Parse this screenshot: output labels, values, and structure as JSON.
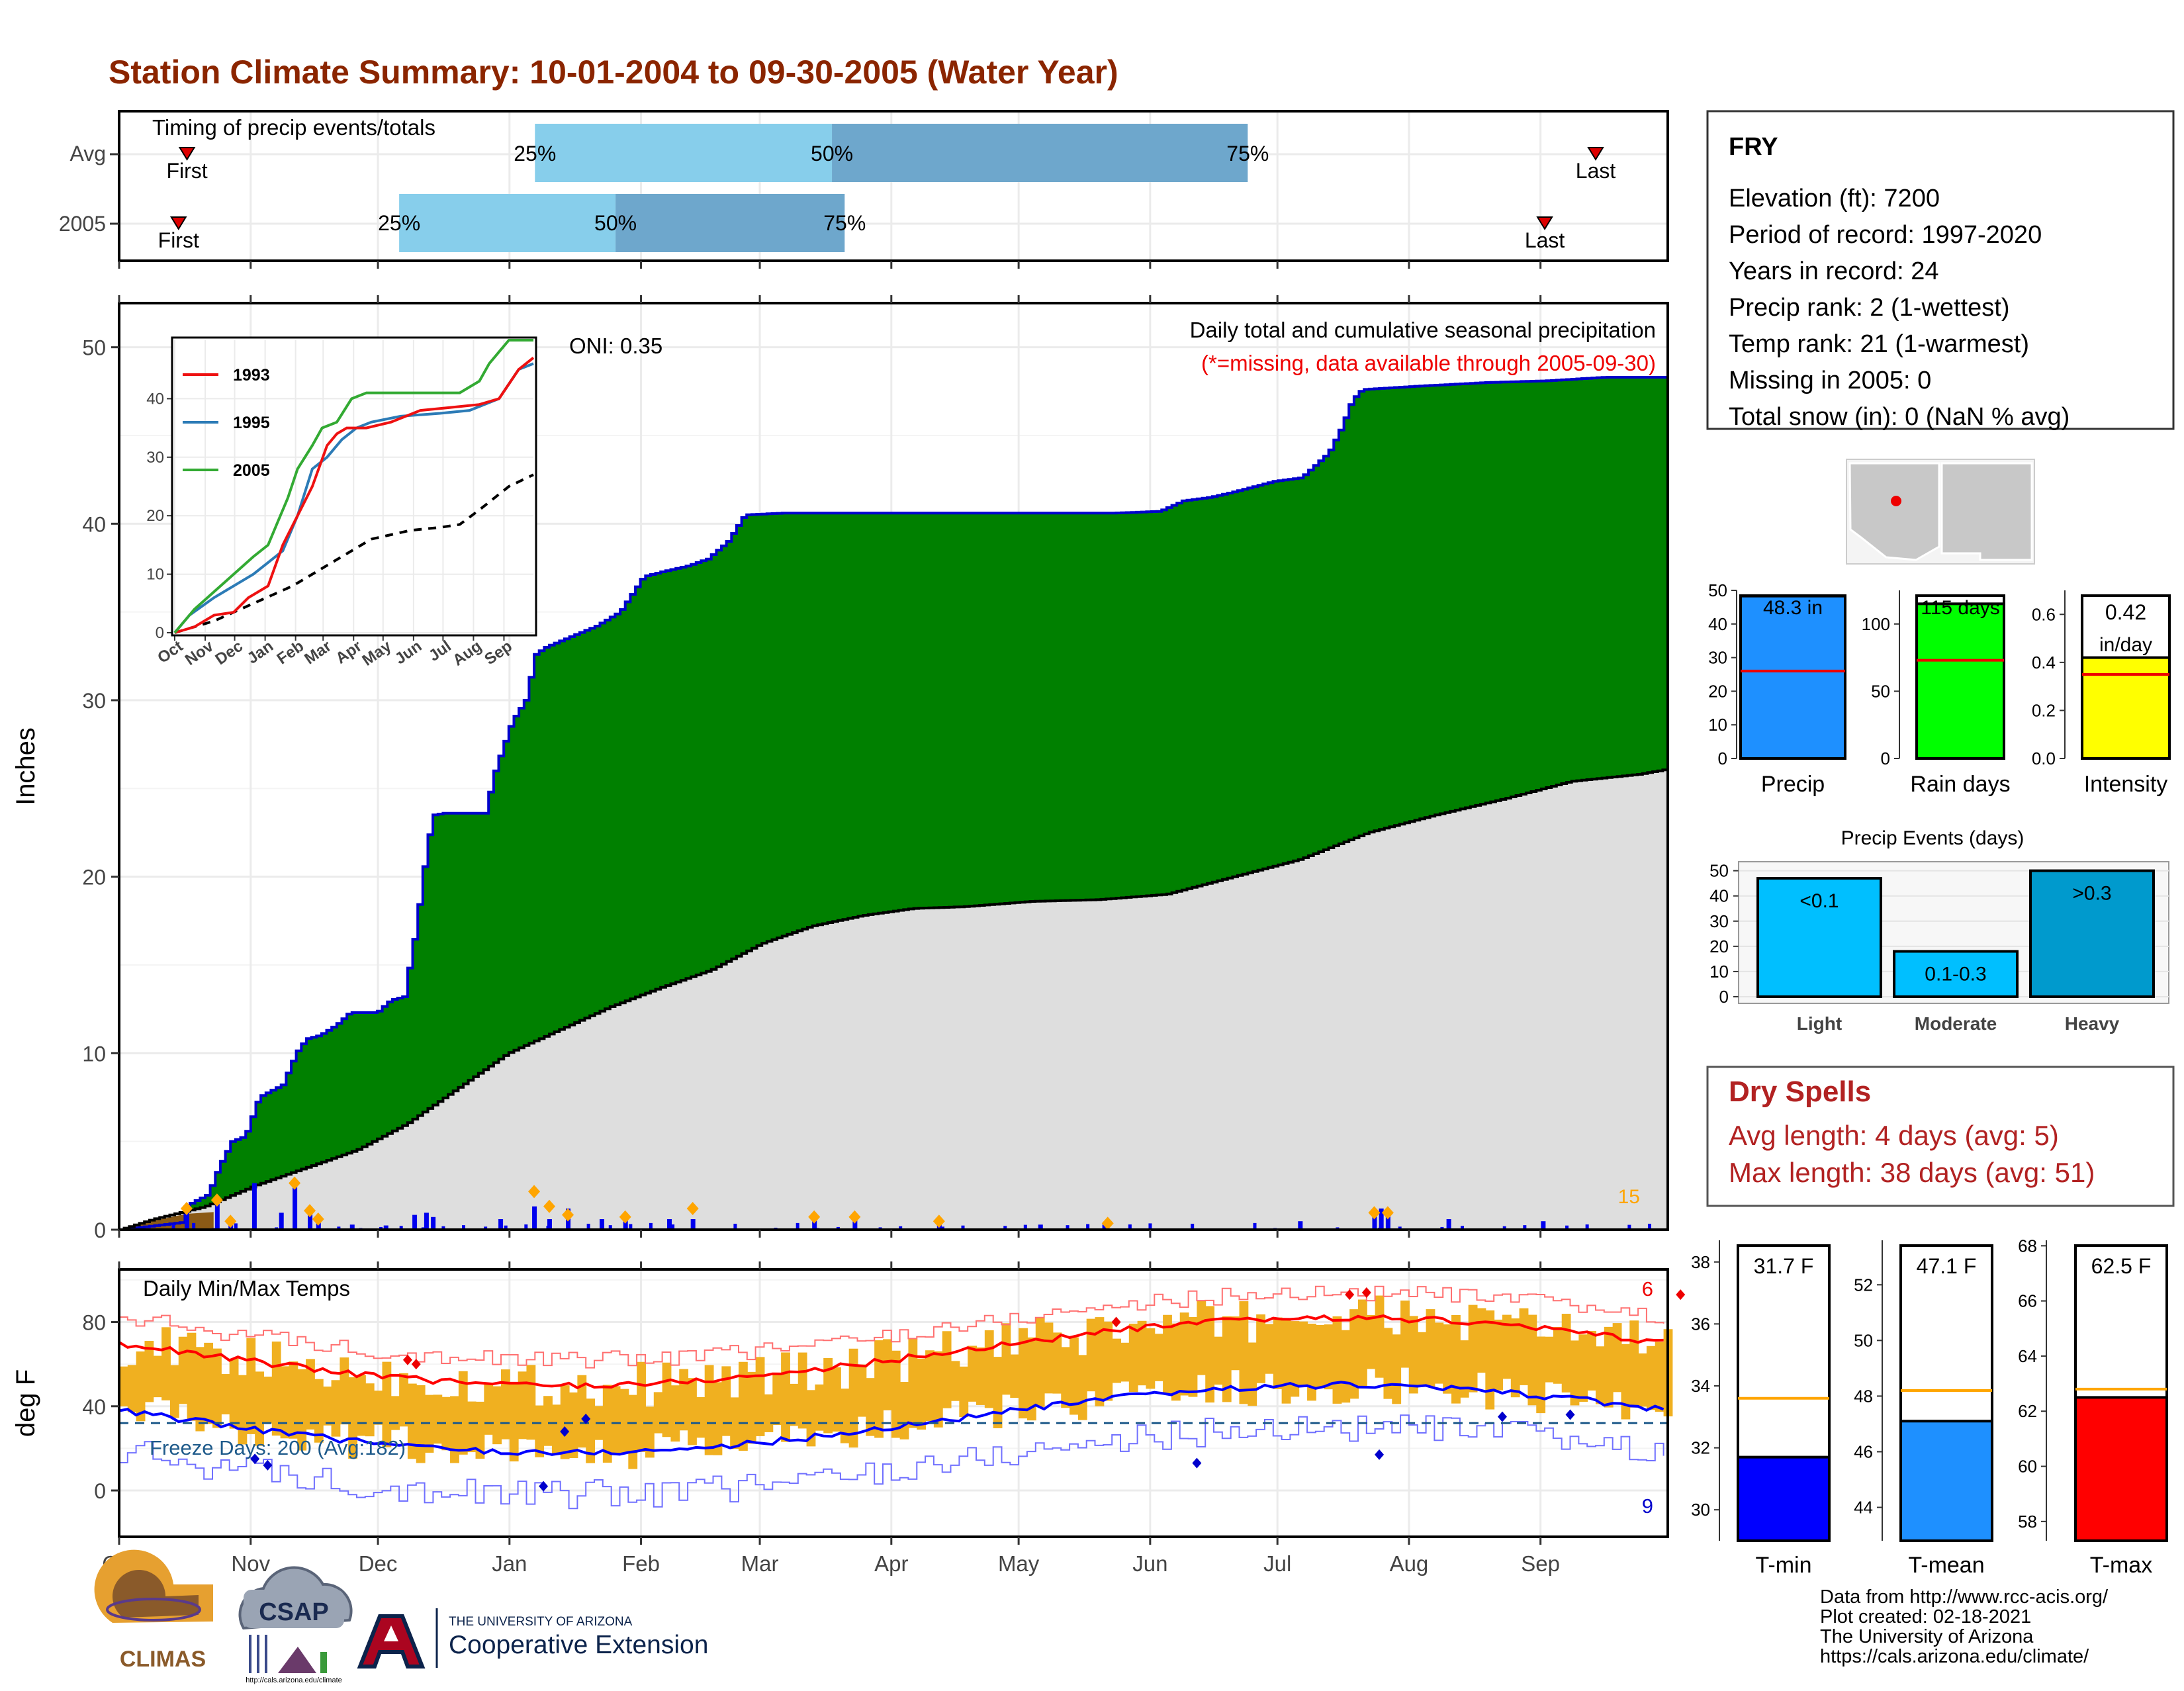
{
  "title": "Station Climate Summary: 10-01-2004 to 09-30-2005 (Water Year)",
  "months": [
    "Oct",
    "Nov",
    "Dec",
    "Jan",
    "Feb",
    "Mar",
    "Apr",
    "May",
    "Jun",
    "Jul",
    "Aug",
    "Sep"
  ],
  "colors": {
    "title": "#8b2500",
    "cum_green": "#008000",
    "cum_line": "#0000cd",
    "norm_gray": "#dedede",
    "daily_bar": "#0000ee",
    "marker": "#ffa500",
    "tmin": "#0000ff",
    "tmean": "#1e90ff",
    "tmax": "#ff0000",
    "band": "#f0b020",
    "light_blue": "#87ceeb",
    "mid_blue": "#6ea7cc",
    "precip_bar": "#1e90ff",
    "rain_bar": "#00ff00",
    "intensity_bar": "#ffff00",
    "events_light": "#00bfff",
    "events_mod": "#00bfff",
    "events_heavy": "#009acd",
    "dry_text": "#b22222"
  },
  "timing": {
    "label": "Timing of precip events/totals",
    "rows": [
      {
        "name": "Avg",
        "first_label": "First",
        "last_label": "Last",
        "first_doy": 16,
        "last_doy": 348,
        "p25": 98,
        "p50": 168,
        "p75": 266,
        "p25_label": "25%",
        "p50_label": "50%",
        "p75_label": "75%"
      },
      {
        "name": "2005",
        "first_label": "First",
        "last_label": "Last",
        "first_doy": 14,
        "last_doy": 336,
        "p25": 66,
        "p50": 117,
        "p75": 171,
        "p25_label": "25%",
        "p50_label": "50%",
        "p75_label": "75%"
      }
    ]
  },
  "precip_panel": {
    "ylabel": "Inches",
    "oni": "ONI: 0.35",
    "subtitle": "Daily total and cumulative seasonal precipitation",
    "missing_note": "(*=missing, data available through 2005-09-30)",
    "marker_count": "15"
  },
  "inset": {
    "months": [
      "Oct",
      "Nov",
      "Dec",
      "Jan",
      "Feb",
      "Mar",
      "Apr",
      "May",
      "Jun",
      "Jul",
      "Aug",
      "Sep"
    ],
    "legend": [
      {
        "name": "1993",
        "color": "#ee1111"
      },
      {
        "name": "1995",
        "color": "#2c7bb6"
      },
      {
        "name": "2005",
        "color": "#33aa33"
      }
    ]
  },
  "temp_panel": {
    "ylabel": "deg F",
    "label": "Daily Min/Max Temps",
    "freeze": "Freeze Days: 200 (Avg:182)",
    "max_count": "6",
    "min_count": "9"
  },
  "station": {
    "name": "FRY",
    "lines": [
      "Elevation (ft): 7200",
      "Period of record: 1997-2020",
      "Years in record: 24",
      "Precip rank: 2 (1-wettest)",
      "Temp rank: 21 (1-warmest)",
      "Missing in 2005: 0",
      "Total snow (in): 0 (NaN % avg)"
    ]
  },
  "summary_bars": [
    {
      "label": "Precip",
      "value_label": "48.3 in",
      "value": 48.3,
      "avg": 26,
      "ymax": 50,
      "ticks": [
        0,
        10,
        20,
        30,
        40,
        50
      ],
      "color": "#1e90ff"
    },
    {
      "label": "Rain days",
      "value_label": "115 days",
      "value": 115,
      "avg": 73,
      "ymax": 125,
      "ticks": [
        0,
        50,
        100
      ],
      "color": "#00ff00"
    },
    {
      "label": "Intensity",
      "value_label": "0.42 in/day",
      "value": 0.42,
      "avg": 0.35,
      "ymax": 0.7,
      "ticks": [
        "0.0",
        "0.2",
        "0.4",
        "0.6"
      ],
      "color": "#ffff00"
    }
  ],
  "events": {
    "title": "Precip Events (days)",
    "categories": [
      "Light",
      "Moderate",
      "Heavy"
    ],
    "bar_labels": [
      "<0.1",
      "0.1-0.3",
      ">0.3"
    ],
    "values": [
      47,
      18,
      50
    ],
    "ticks": [
      0,
      10,
      20,
      30,
      40,
      50
    ]
  },
  "dry_spells": {
    "title": "Dry Spells",
    "avg_line": "Avg length: 4 days (avg: 5)",
    "max_line": "Max length: 38 days (avg: 51)"
  },
  "temp_bars": [
    {
      "label": "T-min",
      "value_label": "31.7 F",
      "value": 31.7,
      "avg": 33.6,
      "ymin": 29,
      "ymax": 38.7,
      "ticks": [
        30,
        32,
        34,
        36,
        38
      ],
      "color": "#0000ff"
    },
    {
      "label": "T-mean",
      "value_label": "47.1 F",
      "value": 47.1,
      "avg": 48.2,
      "ymin": 42.8,
      "ymax": 53.6,
      "ticks": [
        44,
        46,
        48,
        50,
        52
      ],
      "color": "#1e90ff"
    },
    {
      "label": "T-max",
      "value_label": "62.5 F",
      "value": 62.5,
      "avg": 62.8,
      "ymin": 57.3,
      "ymax": 68.2,
      "ticks": [
        58,
        60,
        62,
        64,
        66,
        68
      ],
      "color": "#ff0000"
    }
  ],
  "footer": {
    "lines": [
      "Data from http://www.rcc-acis.org/",
      "Plot created: 02-18-2021",
      "The University of Arizona",
      "https://cals.arizona.edu/climate/"
    ],
    "climas": "CLIMAS",
    "csap": "CSAP",
    "csap_url": "http://cals.arizona.edu/climate",
    "ua_top": "THE UNIVERSITY OF ARIZONA",
    "ua_bottom": "Cooperative Extension"
  },
  "chart_data": {
    "type": "area",
    "title": "Station Climate Summary: 10-01-2004 to 09-30-2005 (Water Year)",
    "ylabel": "Inches",
    "ylim": [
      0,
      52
    ],
    "x_axis": "water-year months Oct 2004 - Sep 2005",
    "series": [
      {
        "name": "2005",
        "kind": "cumulative",
        "points": [
          [
            0,
            0
          ],
          [
            36,
            0.4
          ],
          [
            40,
            1.4
          ],
          [
            52,
            2
          ],
          [
            58,
            3.5
          ],
          [
            66,
            5
          ],
          [
            74,
            5.3
          ],
          [
            82,
            7.5
          ],
          [
            96,
            8.2
          ],
          [
            104,
            10
          ],
          [
            110,
            10.8
          ],
          [
            118,
            11
          ],
          [
            128,
            11.6
          ],
          [
            136,
            12.3
          ],
          [
            152,
            12.3
          ],
          [
            160,
            13
          ],
          [
            168,
            13.2
          ],
          [
            175,
            17
          ],
          [
            182,
            22
          ],
          [
            186,
            23.5
          ],
          [
            192,
            23.6
          ],
          [
            202,
            23.6
          ],
          [
            216,
            23.6
          ],
          [
            222,
            26
          ],
          [
            232,
            28.8
          ],
          [
            240,
            30
          ],
          [
            246,
            32.6
          ],
          [
            252,
            33
          ],
          [
            262,
            33.4
          ],
          [
            272,
            33.8
          ],
          [
            282,
            34.2
          ],
          [
            296,
            35
          ],
          [
            310,
            37
          ],
          [
            322,
            37.3
          ],
          [
            336,
            37.6
          ],
          [
            348,
            38
          ],
          [
            360,
            39
          ],
          [
            370,
            40.5
          ],
          [
            392,
            40.6
          ],
          [
            420,
            40.6
          ],
          [
            448,
            40.6
          ],
          [
            476,
            40.6
          ],
          [
            504,
            40.6
          ],
          [
            532,
            40.6
          ],
          [
            560,
            40.6
          ],
          [
            588,
            40.6
          ],
          [
            616,
            40.7
          ],
          [
            630,
            41.3
          ],
          [
            646,
            41.5
          ],
          [
            660,
            41.8
          ],
          [
            672,
            42.1
          ],
          [
            684,
            42.4
          ],
          [
            700,
            42.6
          ],
          [
            716,
            44
          ],
          [
            724,
            45.5
          ],
          [
            730,
            47
          ],
          [
            736,
            47.6
          ],
          [
            770,
            47.8
          ],
          [
            810,
            48
          ],
          [
            846,
            48.1
          ],
          [
            880,
            48.3
          ],
          [
            918,
            48.3
          ]
        ]
      },
      {
        "name": "Avg",
        "kind": "normal cumulative",
        "points": [
          [
            0,
            0
          ],
          [
            20,
            0.6
          ],
          [
            50,
            1.3
          ],
          [
            80,
            2.5
          ],
          [
            110,
            3.5
          ],
          [
            140,
            4.5
          ],
          [
            170,
            6.0
          ],
          [
            200,
            8.0
          ],
          [
            230,
            10.0
          ],
          [
            260,
            11.3
          ],
          [
            290,
            12.6
          ],
          [
            320,
            13.7
          ],
          [
            350,
            14.7
          ],
          [
            380,
            16.2
          ],
          [
            410,
            17.2
          ],
          [
            440,
            17.8
          ],
          [
            470,
            18.2
          ],
          [
            500,
            18.3
          ],
          [
            540,
            18.6
          ],
          [
            580,
            18.7
          ],
          [
            620,
            19.0
          ],
          [
            660,
            20.0
          ],
          [
            700,
            21.0
          ],
          [
            740,
            22.5
          ],
          [
            780,
            23.5
          ],
          [
            820,
            24.4
          ],
          [
            860,
            25.4
          ],
          [
            900,
            25.8
          ],
          [
            918,
            26.1
          ]
        ]
      }
    ],
    "daily_precip": [
      [
        40,
        0.45
      ],
      [
        58,
        0.65
      ],
      [
        66,
        0.2
      ],
      [
        80,
        1.1
      ],
      [
        96,
        0.4
      ],
      [
        104,
        1.0
      ],
      [
        113,
        0.45
      ],
      [
        118,
        0.25
      ],
      [
        138,
        0.12
      ],
      [
        158,
        0.1
      ],
      [
        175,
        0.35
      ],
      [
        182,
        0.4
      ],
      [
        186,
        0.3
      ],
      [
        226,
        0.25
      ],
      [
        246,
        0.55
      ],
      [
        255,
        0.25
      ],
      [
        266,
        0.5
      ],
      [
        286,
        0.25
      ],
      [
        300,
        0.3
      ],
      [
        326,
        0.25
      ],
      [
        340,
        0.25
      ],
      [
        412,
        0.3
      ],
      [
        436,
        0.3
      ],
      [
        486,
        0.2
      ],
      [
        546,
        0.12
      ],
      [
        584,
        0.12
      ],
      [
        700,
        0.2
      ],
      [
        744,
        0.4
      ],
      [
        748,
        0.5
      ],
      [
        752,
        0.35
      ],
      [
        788,
        0.25
      ],
      [
        844,
        0.2
      ]
    ],
    "temps": {
      "tmax_avg_range": [
        54,
        80
      ],
      "tmin_avg_range": [
        16,
        46
      ]
    }
  }
}
